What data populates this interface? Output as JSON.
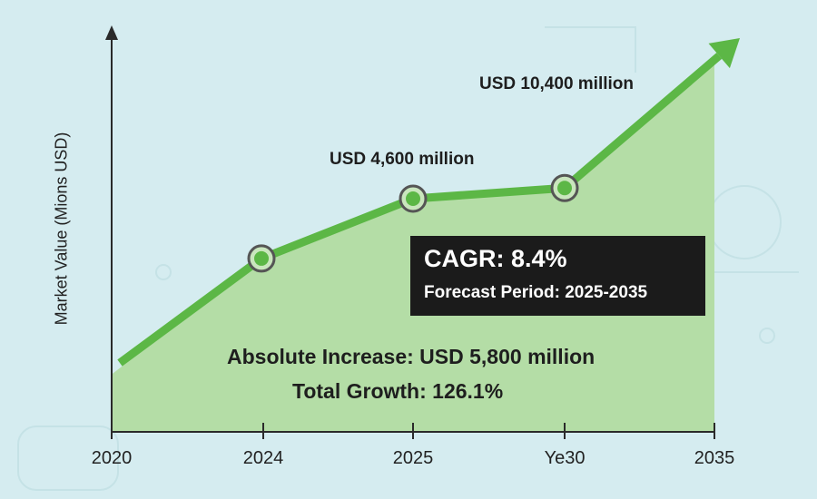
{
  "chart_data": {
    "type": "line",
    "title": "",
    "xlabel": "",
    "ylabel": "Market Value (Mions USD)",
    "categories": [
      "2020",
      "2024",
      "2025",
      "Ye30",
      "2035"
    ],
    "values": [
      1360,
      3420,
      4600,
      4810,
      10400
    ],
    "markers": [
      false,
      true,
      true,
      true,
      false
    ],
    "ylim": [
      0,
      8000
    ],
    "grid": false,
    "fill": "area",
    "annotations": {
      "label_2025": "USD 4,600 million",
      "label_2035": "USD 10,400 million",
      "cagr": "CAGR: 8.4%",
      "forecast": "Forecast Period: 2025-2035",
      "absolute_increase": "Absolute Increase: USD 5,800 million",
      "total_growth": "Total Growth: 126.1%"
    },
    "colors": {
      "line": "#5cb746",
      "fill": "#b4dda6",
      "background": "#d5ecf0",
      "box": "#1b1b1b"
    }
  }
}
